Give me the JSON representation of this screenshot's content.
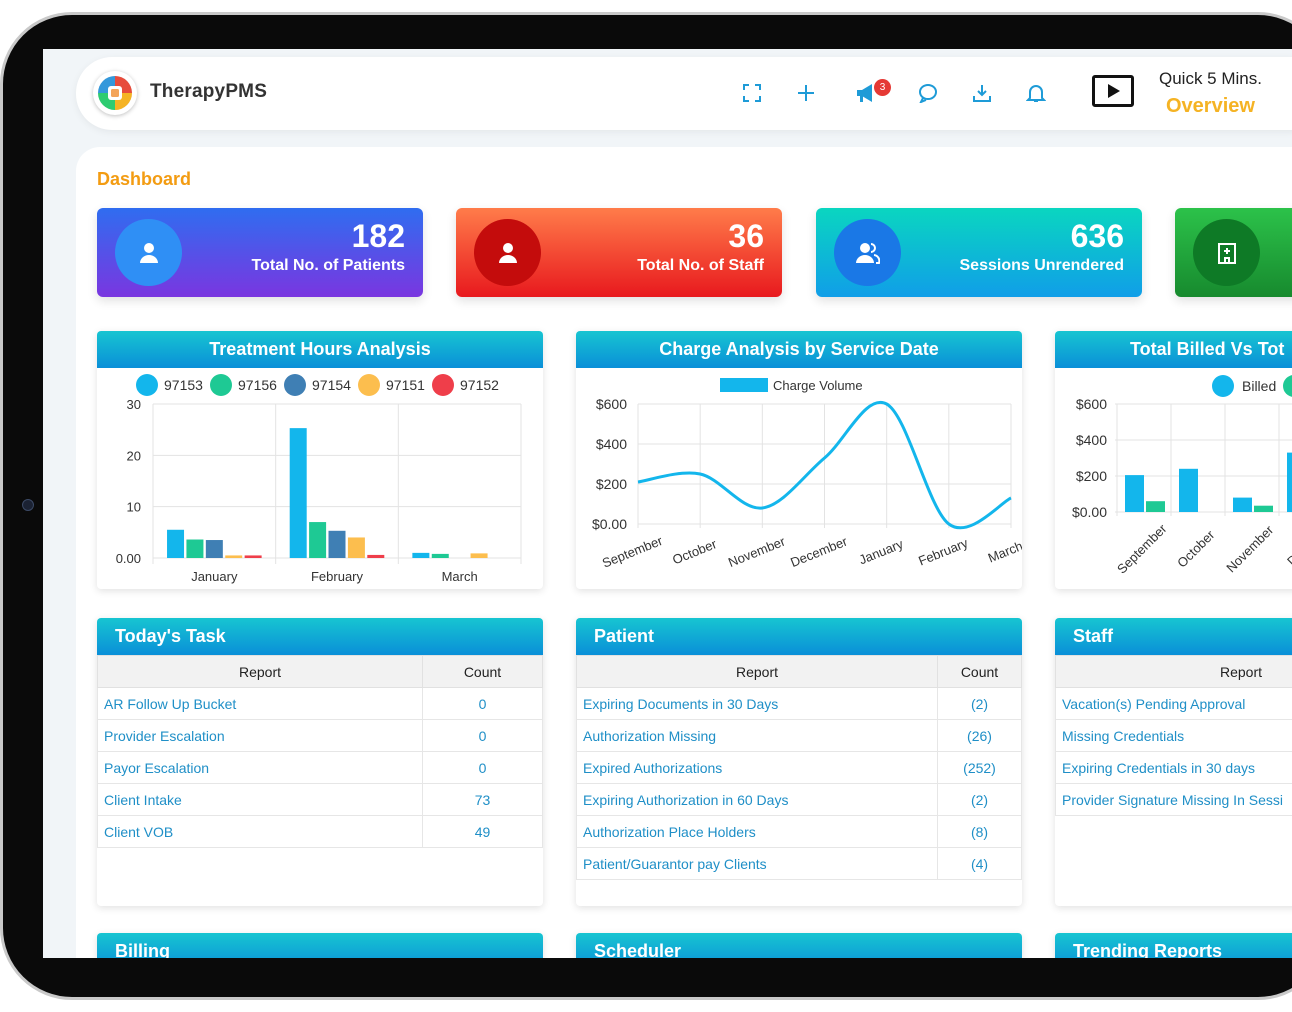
{
  "app": {
    "brand": "TherapyPMS"
  },
  "topbar": {
    "notification_badge": "3",
    "quick_line1": "Quick 5 Mins.",
    "quick_line2": "Overview"
  },
  "page_title": "Dashboard",
  "stats": [
    {
      "value": "182",
      "label": "Total No. of Patients",
      "color": "#4b4fe0"
    },
    {
      "value": "36",
      "label": "Total No. of Staff",
      "color": "#ee3b2c"
    },
    {
      "value": "636",
      "label": "Sessions Unrendered",
      "color": "#12a9d8"
    },
    {
      "value": "",
      "label": "",
      "color": "#1aa544"
    }
  ],
  "charts": {
    "treatment": {
      "title": "Treatment Hours Analysis"
    },
    "charge": {
      "title": "Charge Analysis by Service Date"
    },
    "billed": {
      "title": "Total Billed Vs Tot"
    }
  },
  "chart_data": [
    {
      "type": "bar",
      "title": "Treatment Hours Analysis",
      "categories": [
        "January",
        "February",
        "March"
      ],
      "ylim": [
        0,
        30
      ],
      "yticks": [
        "30",
        "20",
        "10",
        "0.00"
      ],
      "legend_position": "top",
      "series": [
        {
          "name": "97153",
          "color": "#13b6ec",
          "values": [
            5.5,
            25.3,
            1.0
          ]
        },
        {
          "name": "97156",
          "color": "#1ec994",
          "values": [
            3.6,
            7.0,
            0.8
          ]
        },
        {
          "name": "97154",
          "color": "#3f7fb4",
          "values": [
            3.5,
            5.3,
            0
          ]
        },
        {
          "name": "97151",
          "color": "#fcbe4e",
          "values": [
            0.5,
            4.0,
            0.9
          ]
        },
        {
          "name": "97152",
          "color": "#ef3e4a",
          "values": [
            0.5,
            0.6,
            0
          ]
        }
      ]
    },
    {
      "type": "line",
      "title": "Charge Analysis by Service Date",
      "categories": [
        "September",
        "October",
        "November",
        "December",
        "January",
        "February",
        "March"
      ],
      "ylim": [
        0,
        600
      ],
      "yticks": [
        "$600",
        "$400",
        "$200",
        "$0.00"
      ],
      "legend_position": "top",
      "series": [
        {
          "name": "Charge Volume",
          "color": "#13b6ec",
          "values": [
            210,
            250,
            80,
            330,
            600,
            0,
            130
          ]
        }
      ]
    },
    {
      "type": "bar",
      "title": "Total Billed Vs Tot",
      "categories": [
        "September",
        "October",
        "November",
        "Decem"
      ],
      "ylim": [
        0,
        600
      ],
      "yticks": [
        "$600",
        "$400",
        "$200",
        "$0.00"
      ],
      "legend_position": "top",
      "series": [
        {
          "name": "Billed",
          "color": "#13b6ec",
          "values": [
            205,
            240,
            80,
            330
          ]
        },
        {
          "name": "",
          "color": "#1ec994",
          "values": [
            60,
            0,
            35,
            0
          ]
        }
      ]
    }
  ],
  "tasks": {
    "title": "Today's Task",
    "col_report": "Report",
    "col_count": "Count",
    "rows": [
      {
        "report": "AR Follow Up Bucket",
        "count": "0"
      },
      {
        "report": "Provider Escalation",
        "count": "0"
      },
      {
        "report": "Payor Escalation",
        "count": "0"
      },
      {
        "report": "Client Intake",
        "count": "73"
      },
      {
        "report": "Client VOB",
        "count": "49"
      }
    ]
  },
  "patient": {
    "title": "Patient",
    "col_report": "Report",
    "col_count": "Count",
    "rows": [
      {
        "report": "Expiring Documents in 30 Days",
        "count": "(2)"
      },
      {
        "report": "Authorization Missing",
        "count": "(26)"
      },
      {
        "report": "Expired Authorizations",
        "count": "(252)"
      },
      {
        "report": "Expiring Authorization in 60 Days",
        "count": "(2)"
      },
      {
        "report": "Authorization Place Holders",
        "count": "(8)"
      },
      {
        "report": "Patient/Guarantor pay Clients",
        "count": "(4)"
      }
    ]
  },
  "staff": {
    "title": "Staff",
    "col_report": "Report",
    "rows": [
      {
        "report": "Vacation(s) Pending Approval"
      },
      {
        "report": "Missing Credentials"
      },
      {
        "report": "Expiring Credentials in 30 days"
      },
      {
        "report": "Provider Signature Missing In Sessi"
      }
    ]
  },
  "bottom": {
    "billing": "Billing",
    "scheduler": "Scheduler",
    "trending": "Trending Reports"
  }
}
